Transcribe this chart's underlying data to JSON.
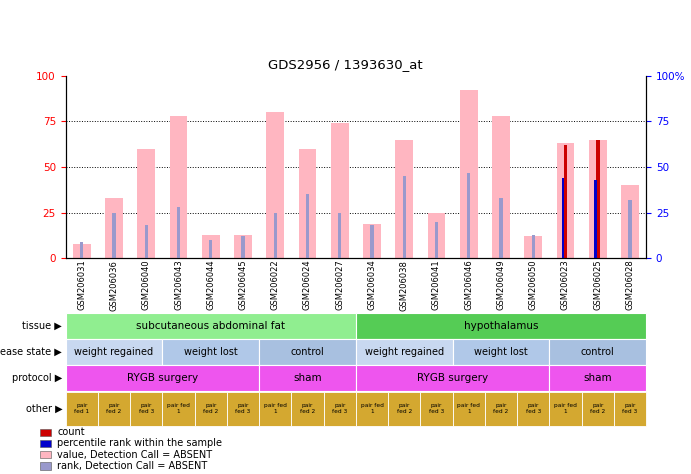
{
  "title": "GDS2956 / 1393630_at",
  "samples": [
    "GSM206031",
    "GSM206036",
    "GSM206040",
    "GSM206043",
    "GSM206044",
    "GSM206045",
    "GSM206022",
    "GSM206024",
    "GSM206027",
    "GSM206034",
    "GSM206038",
    "GSM206041",
    "GSM206046",
    "GSM206049",
    "GSM206050",
    "GSM206023",
    "GSM206025",
    "GSM206028"
  ],
  "value_absent": [
    8,
    33,
    60,
    78,
    13,
    13,
    80,
    60,
    74,
    19,
    65,
    25,
    92,
    78,
    12,
    63,
    65,
    40
  ],
  "rank_absent": [
    9,
    25,
    18,
    28,
    10,
    12,
    25,
    35,
    25,
    18,
    45,
    20,
    47,
    33,
    13,
    43,
    40,
    32
  ],
  "count": [
    0,
    0,
    0,
    0,
    0,
    0,
    0,
    0,
    0,
    0,
    0,
    0,
    0,
    0,
    0,
    62,
    65,
    0
  ],
  "percentile": [
    0,
    0,
    0,
    0,
    0,
    0,
    0,
    0,
    0,
    0,
    0,
    0,
    0,
    0,
    0,
    44,
    43,
    0
  ],
  "tissue_groups": [
    {
      "label": "subcutaneous abdominal fat",
      "start": 0,
      "end": 9,
      "color": "#90EE90"
    },
    {
      "label": "hypothalamus",
      "start": 9,
      "end": 18,
      "color": "#55CC55"
    }
  ],
  "disease_groups": [
    {
      "label": "weight regained",
      "start": 0,
      "end": 3,
      "color": "#C8D8F0"
    },
    {
      "label": "weight lost",
      "start": 3,
      "end": 6,
      "color": "#B0C8E8"
    },
    {
      "label": "control",
      "start": 6,
      "end": 9,
      "color": "#A8C0E0"
    },
    {
      "label": "weight regained",
      "start": 9,
      "end": 12,
      "color": "#C8D8F0"
    },
    {
      "label": "weight lost",
      "start": 12,
      "end": 15,
      "color": "#B0C8E8"
    },
    {
      "label": "control",
      "start": 15,
      "end": 18,
      "color": "#A8C0E0"
    }
  ],
  "protocol_groups": [
    {
      "label": "RYGB surgery",
      "start": 0,
      "end": 6,
      "color": "#EE55EE"
    },
    {
      "label": "sham",
      "start": 6,
      "end": 9,
      "color": "#EE55EE"
    },
    {
      "label": "RYGB surgery",
      "start": 9,
      "end": 15,
      "color": "#EE55EE"
    },
    {
      "label": "sham",
      "start": 15,
      "end": 18,
      "color": "#EE55EE"
    }
  ],
  "other_labels": [
    "pair\nfed 1",
    "pair\nfed 2",
    "pair\nfed 3",
    "pair fed\n1",
    "pair\nfed 2",
    "pair\nfed 3",
    "pair fed\n1",
    "pair\nfed 2",
    "pair\nfed 3",
    "pair fed\n1",
    "pair\nfed 2",
    "pair\nfed 3",
    "pair fed\n1",
    "pair\nfed 2",
    "pair\nfed 3",
    "pair fed\n1",
    "pair\nfed 2",
    "pair\nfed 3"
  ],
  "other_color": "#D4A830",
  "value_absent_color": "#FFB6C1",
  "rank_absent_color": "#9999CC",
  "count_color": "#CC0000",
  "percentile_color": "#0000CC",
  "bg_color": "#FFFFFF",
  "row_labels": [
    "tissue",
    "disease state",
    "protocol",
    "other"
  ],
  "legend_items": [
    {
      "color": "#CC0000",
      "label": "count"
    },
    {
      "color": "#0000CC",
      "label": "percentile rank within the sample"
    },
    {
      "color": "#FFB6C1",
      "label": "value, Detection Call = ABSENT"
    },
    {
      "color": "#9999CC",
      "label": "rank, Detection Call = ABSENT"
    }
  ]
}
